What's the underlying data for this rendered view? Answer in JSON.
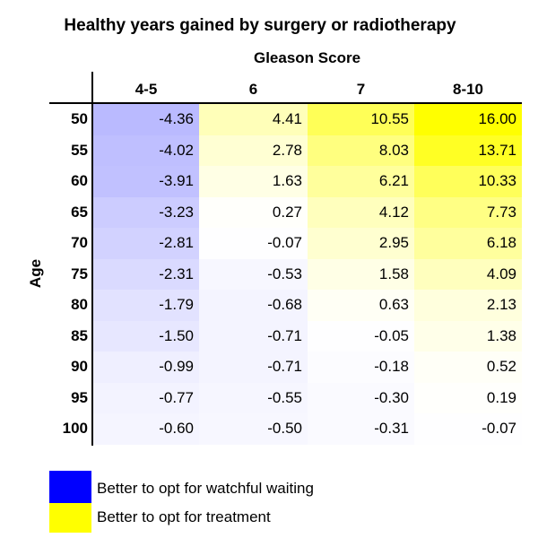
{
  "chart_data": {
    "type": "heatmap",
    "title": "Healthy years gained by surgery or radiotherapy",
    "xlabel": "Gleason Score",
    "ylabel": "Age",
    "x_categories": [
      "4-5",
      "6",
      "7",
      "8-10"
    ],
    "y_categories": [
      "50",
      "55",
      "60",
      "65",
      "70",
      "75",
      "80",
      "85",
      "90",
      "95",
      "100"
    ],
    "values": [
      [
        "-4.36",
        "4.41",
        "10.55",
        "16.00"
      ],
      [
        "-4.02",
        "2.78",
        "8.03",
        "13.71"
      ],
      [
        "-3.91",
        "1.63",
        "6.21",
        "10.33"
      ],
      [
        "-3.23",
        "0.27",
        "4.12",
        "7.73"
      ],
      [
        "-2.81",
        "-0.07",
        "2.95",
        "6.18"
      ],
      [
        "-2.31",
        "-0.53",
        "1.58",
        "4.09"
      ],
      [
        "-1.79",
        "-0.68",
        "0.63",
        "2.13"
      ],
      [
        "-1.50",
        "-0.71",
        "-0.05",
        "1.38"
      ],
      [
        "-0.99",
        "-0.71",
        "-0.18",
        "0.52"
      ],
      [
        "-0.77",
        "-0.55",
        "-0.30",
        "0.19"
      ],
      [
        "-0.60",
        "-0.50",
        "-0.31",
        "-0.07"
      ]
    ],
    "color_scale": {
      "negative": "#0000ff",
      "positive": "#ffff00",
      "mid": "#ffffff",
      "max_abs": 16
    },
    "legend": [
      {
        "label": "Better to opt for watchful waiting",
        "color": "#0000ff"
      },
      {
        "label": "Better to opt for treatment",
        "color": "#ffff00"
      }
    ],
    "legend_position": "bottom-left"
  }
}
